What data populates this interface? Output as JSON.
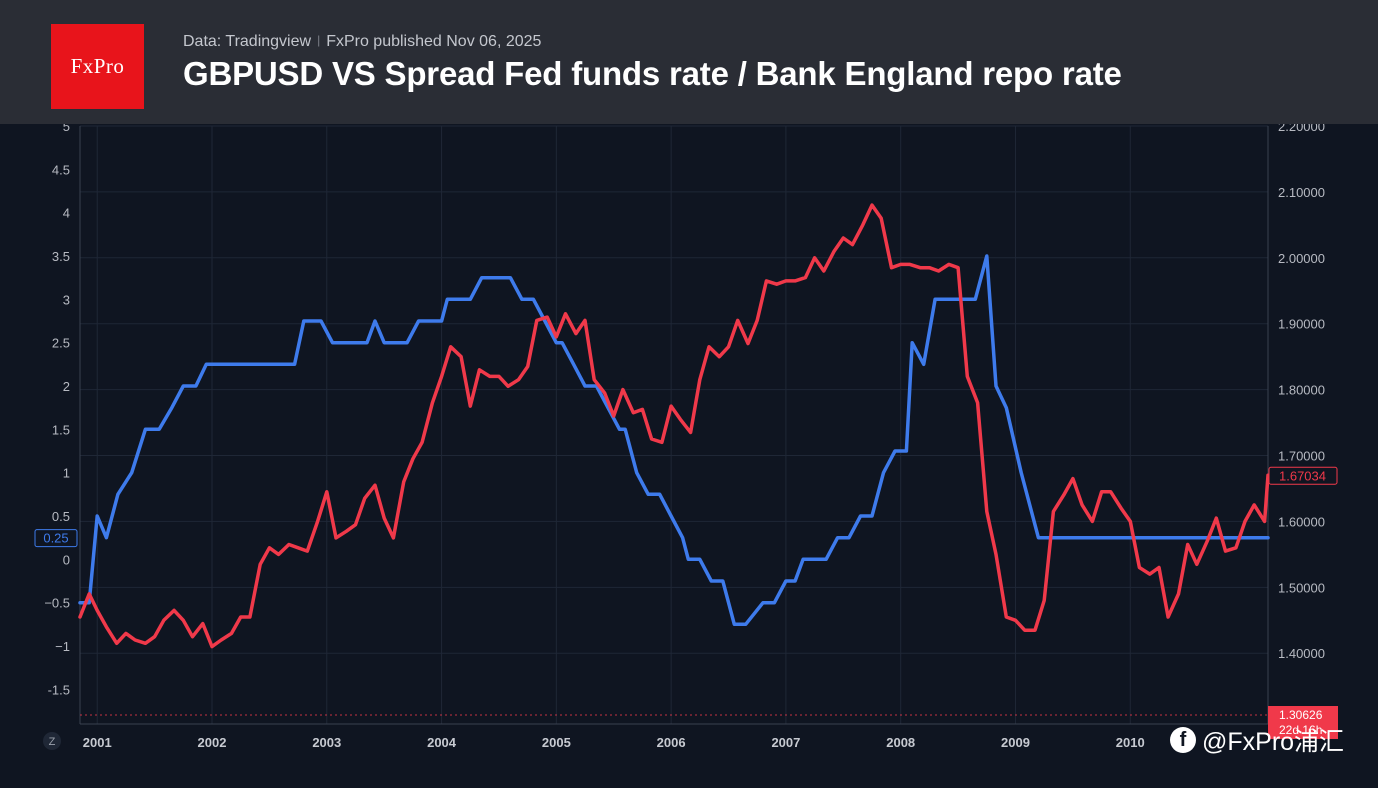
{
  "header": {
    "logo_text": "FxPro",
    "source_text": "Data: Tradingview",
    "published_text": "FxPro published Nov 06, 2025",
    "title": "GBPUSD VS Spread Fed funds rate / Bank England repo rate"
  },
  "watermark": {
    "text": "@FxPro浦汇",
    "icon": "facebook-icon"
  },
  "chart_data": {
    "type": "line",
    "title": "GBPUSD VS Spread Fed funds rate / Bank England repo rate",
    "x_ticks": [
      "2001",
      "2002",
      "2003",
      "2004",
      "2005",
      "2006",
      "2007",
      "2008",
      "2009",
      "2010"
    ],
    "xlim": [
      2000.85,
      2011.2
    ],
    "left_axis": {
      "ticks": [
        "-1.5",
        "−1",
        "−0.5",
        "0",
        "0.5",
        "1",
        "1.5",
        "2",
        "2.5",
        "3",
        "3.5",
        "4",
        "4.5",
        "5"
      ],
      "ylim": [
        -1.9,
        5
      ]
    },
    "right_axis": {
      "ticks": [
        "1.40000",
        "1.50000",
        "1.60000",
        "1.70000",
        "1.80000",
        "1.90000",
        "2.00000",
        "2.10000",
        "2.20000"
      ],
      "ylim": [
        1.2926,
        2.2
      ]
    },
    "grid": true,
    "series": [
      {
        "axis": "left",
        "color": "#3e7bec",
        "last_label": "0.25",
        "x": [
          2000.85,
          2000.93,
          2001.0,
          2001.08,
          2001.18,
          2001.3,
          2001.42,
          2001.54,
          2001.65,
          2001.75,
          2001.86,
          2001.95,
          2002.05,
          2002.5,
          2002.72,
          2002.8,
          2002.95,
          2003.05,
          2003.2,
          2003.35,
          2003.42,
          2003.5,
          2003.7,
          2003.8,
          2004.0,
          2004.05,
          2004.25,
          2004.35,
          2004.45,
          2004.6,
          2004.7,
          2004.8,
          2004.9,
          2005.0,
          2005.05,
          2005.15,
          2005.25,
          2005.35,
          2005.45,
          2005.55,
          2005.6,
          2005.7,
          2005.8,
          2005.9,
          2006.0,
          2006.1,
          2006.15,
          2006.25,
          2006.35,
          2006.45,
          2006.55,
          2006.65,
          2006.8,
          2006.9,
          2007.0,
          2007.08,
          2007.15,
          2007.25,
          2007.35,
          2007.45,
          2007.55,
          2007.65,
          2007.75,
          2007.85,
          2007.95,
          2008.05,
          2008.1,
          2008.2,
          2008.3,
          2008.45,
          2008.65,
          2008.75,
          2008.83,
          2008.92,
          2009.05,
          2009.2,
          2011.2
        ],
        "y": [
          -0.5,
          -0.5,
          0.5,
          0.25,
          0.75,
          1.0,
          1.5,
          1.5,
          1.75,
          2.0,
          2.0,
          2.25,
          2.25,
          2.25,
          2.25,
          2.75,
          2.75,
          2.5,
          2.5,
          2.5,
          2.75,
          2.5,
          2.5,
          2.75,
          2.75,
          3.0,
          3.0,
          3.25,
          3.25,
          3.25,
          3.0,
          3.0,
          2.75,
          2.5,
          2.5,
          2.25,
          2.0,
          2.0,
          1.75,
          1.5,
          1.5,
          1.0,
          0.75,
          0.75,
          0.5,
          0.25,
          0.0,
          0.0,
          -0.25,
          -0.25,
          -0.75,
          -0.75,
          -0.5,
          -0.5,
          -0.25,
          -0.25,
          0.0,
          0.0,
          0.0,
          0.25,
          0.25,
          0.5,
          0.5,
          1.0,
          1.25,
          1.25,
          2.5,
          2.25,
          3.0,
          3.0,
          3.0,
          3.5,
          2.0,
          1.75,
          1.0,
          0.25,
          0.25
        ]
      },
      {
        "axis": "right",
        "color": "#f0394a",
        "last_label": "1.67034",
        "x": [
          2000.85,
          2000.93,
          2001.0,
          2001.08,
          2001.17,
          2001.25,
          2001.33,
          2001.42,
          2001.5,
          2001.58,
          2001.67,
          2001.75,
          2001.83,
          2001.92,
          2002.0,
          2002.08,
          2002.17,
          2002.25,
          2002.33,
          2002.42,
          2002.5,
          2002.58,
          2002.67,
          2002.75,
          2002.83,
          2002.92,
          2003.0,
          2003.08,
          2003.17,
          2003.25,
          2003.33,
          2003.42,
          2003.5,
          2003.58,
          2003.67,
          2003.75,
          2003.83,
          2003.92,
          2004.0,
          2004.08,
          2004.17,
          2004.25,
          2004.33,
          2004.42,
          2004.5,
          2004.58,
          2004.67,
          2004.75,
          2004.83,
          2004.92,
          2005.0,
          2005.08,
          2005.17,
          2005.25,
          2005.33,
          2005.42,
          2005.5,
          2005.58,
          2005.67,
          2005.75,
          2005.83,
          2005.92,
          2006.0,
          2006.08,
          2006.17,
          2006.25,
          2006.33,
          2006.42,
          2006.5,
          2006.58,
          2006.67,
          2006.75,
          2006.83,
          2006.92,
          2007.0,
          2007.08,
          2007.17,
          2007.25,
          2007.33,
          2007.42,
          2007.5,
          2007.58,
          2007.67,
          2007.75,
          2007.83,
          2007.92,
          2008.0,
          2008.08,
          2008.17,
          2008.25,
          2008.33,
          2008.42,
          2008.5,
          2008.58,
          2008.67,
          2008.75,
          2008.83,
          2008.92,
          2009.0,
          2009.08,
          2009.17,
          2009.25,
          2009.33,
          2009.42,
          2009.5,
          2009.58,
          2009.67,
          2009.75,
          2009.83,
          2009.92,
          2010.0,
          2010.08,
          2010.17,
          2010.25,
          2010.33,
          2010.42,
          2010.5,
          2010.58,
          2010.67,
          2010.75,
          2010.83,
          2010.92,
          2011.0,
          2011.08,
          2011.17,
          2011.2
        ],
        "y": [
          1.455,
          1.49,
          1.465,
          1.44,
          1.415,
          1.43,
          1.42,
          1.415,
          1.425,
          1.45,
          1.465,
          1.45,
          1.425,
          1.445,
          1.41,
          1.42,
          1.43,
          1.455,
          1.455,
          1.535,
          1.56,
          1.55,
          1.565,
          1.56,
          1.555,
          1.6,
          1.645,
          1.575,
          1.585,
          1.595,
          1.635,
          1.655,
          1.605,
          1.575,
          1.66,
          1.695,
          1.72,
          1.78,
          1.82,
          1.865,
          1.85,
          1.775,
          1.83,
          1.82,
          1.82,
          1.805,
          1.815,
          1.835,
          1.905,
          1.91,
          1.88,
          1.915,
          1.885,
          1.905,
          1.815,
          1.795,
          1.76,
          1.8,
          1.765,
          1.77,
          1.725,
          1.72,
          1.775,
          1.755,
          1.735,
          1.815,
          1.865,
          1.85,
          1.865,
          1.905,
          1.87,
          1.905,
          1.965,
          1.96,
          1.965,
          1.965,
          1.97,
          2.0,
          1.98,
          2.01,
          2.03,
          2.02,
          2.05,
          2.08,
          2.06,
          1.985,
          1.99,
          1.99,
          1.985,
          1.985,
          1.98,
          1.99,
          1.985,
          1.82,
          1.78,
          1.615,
          1.55,
          1.455,
          1.45,
          1.435,
          1.435,
          1.48,
          1.615,
          1.64,
          1.665,
          1.625,
          1.6,
          1.645,
          1.645,
          1.62,
          1.6,
          1.53,
          1.52,
          1.53,
          1.455,
          1.49,
          1.565,
          1.535,
          1.57,
          1.605,
          1.555,
          1.56,
          1.6,
          1.625,
          1.6,
          1.67
        ]
      }
    ],
    "annotations": [
      {
        "axis": "right",
        "value": 1.30626,
        "label": "1.30626",
        "sublabel": "22d 16h",
        "color": "#f0394a",
        "style": "dotted"
      }
    ],
    "scale_button_label": "Z"
  }
}
